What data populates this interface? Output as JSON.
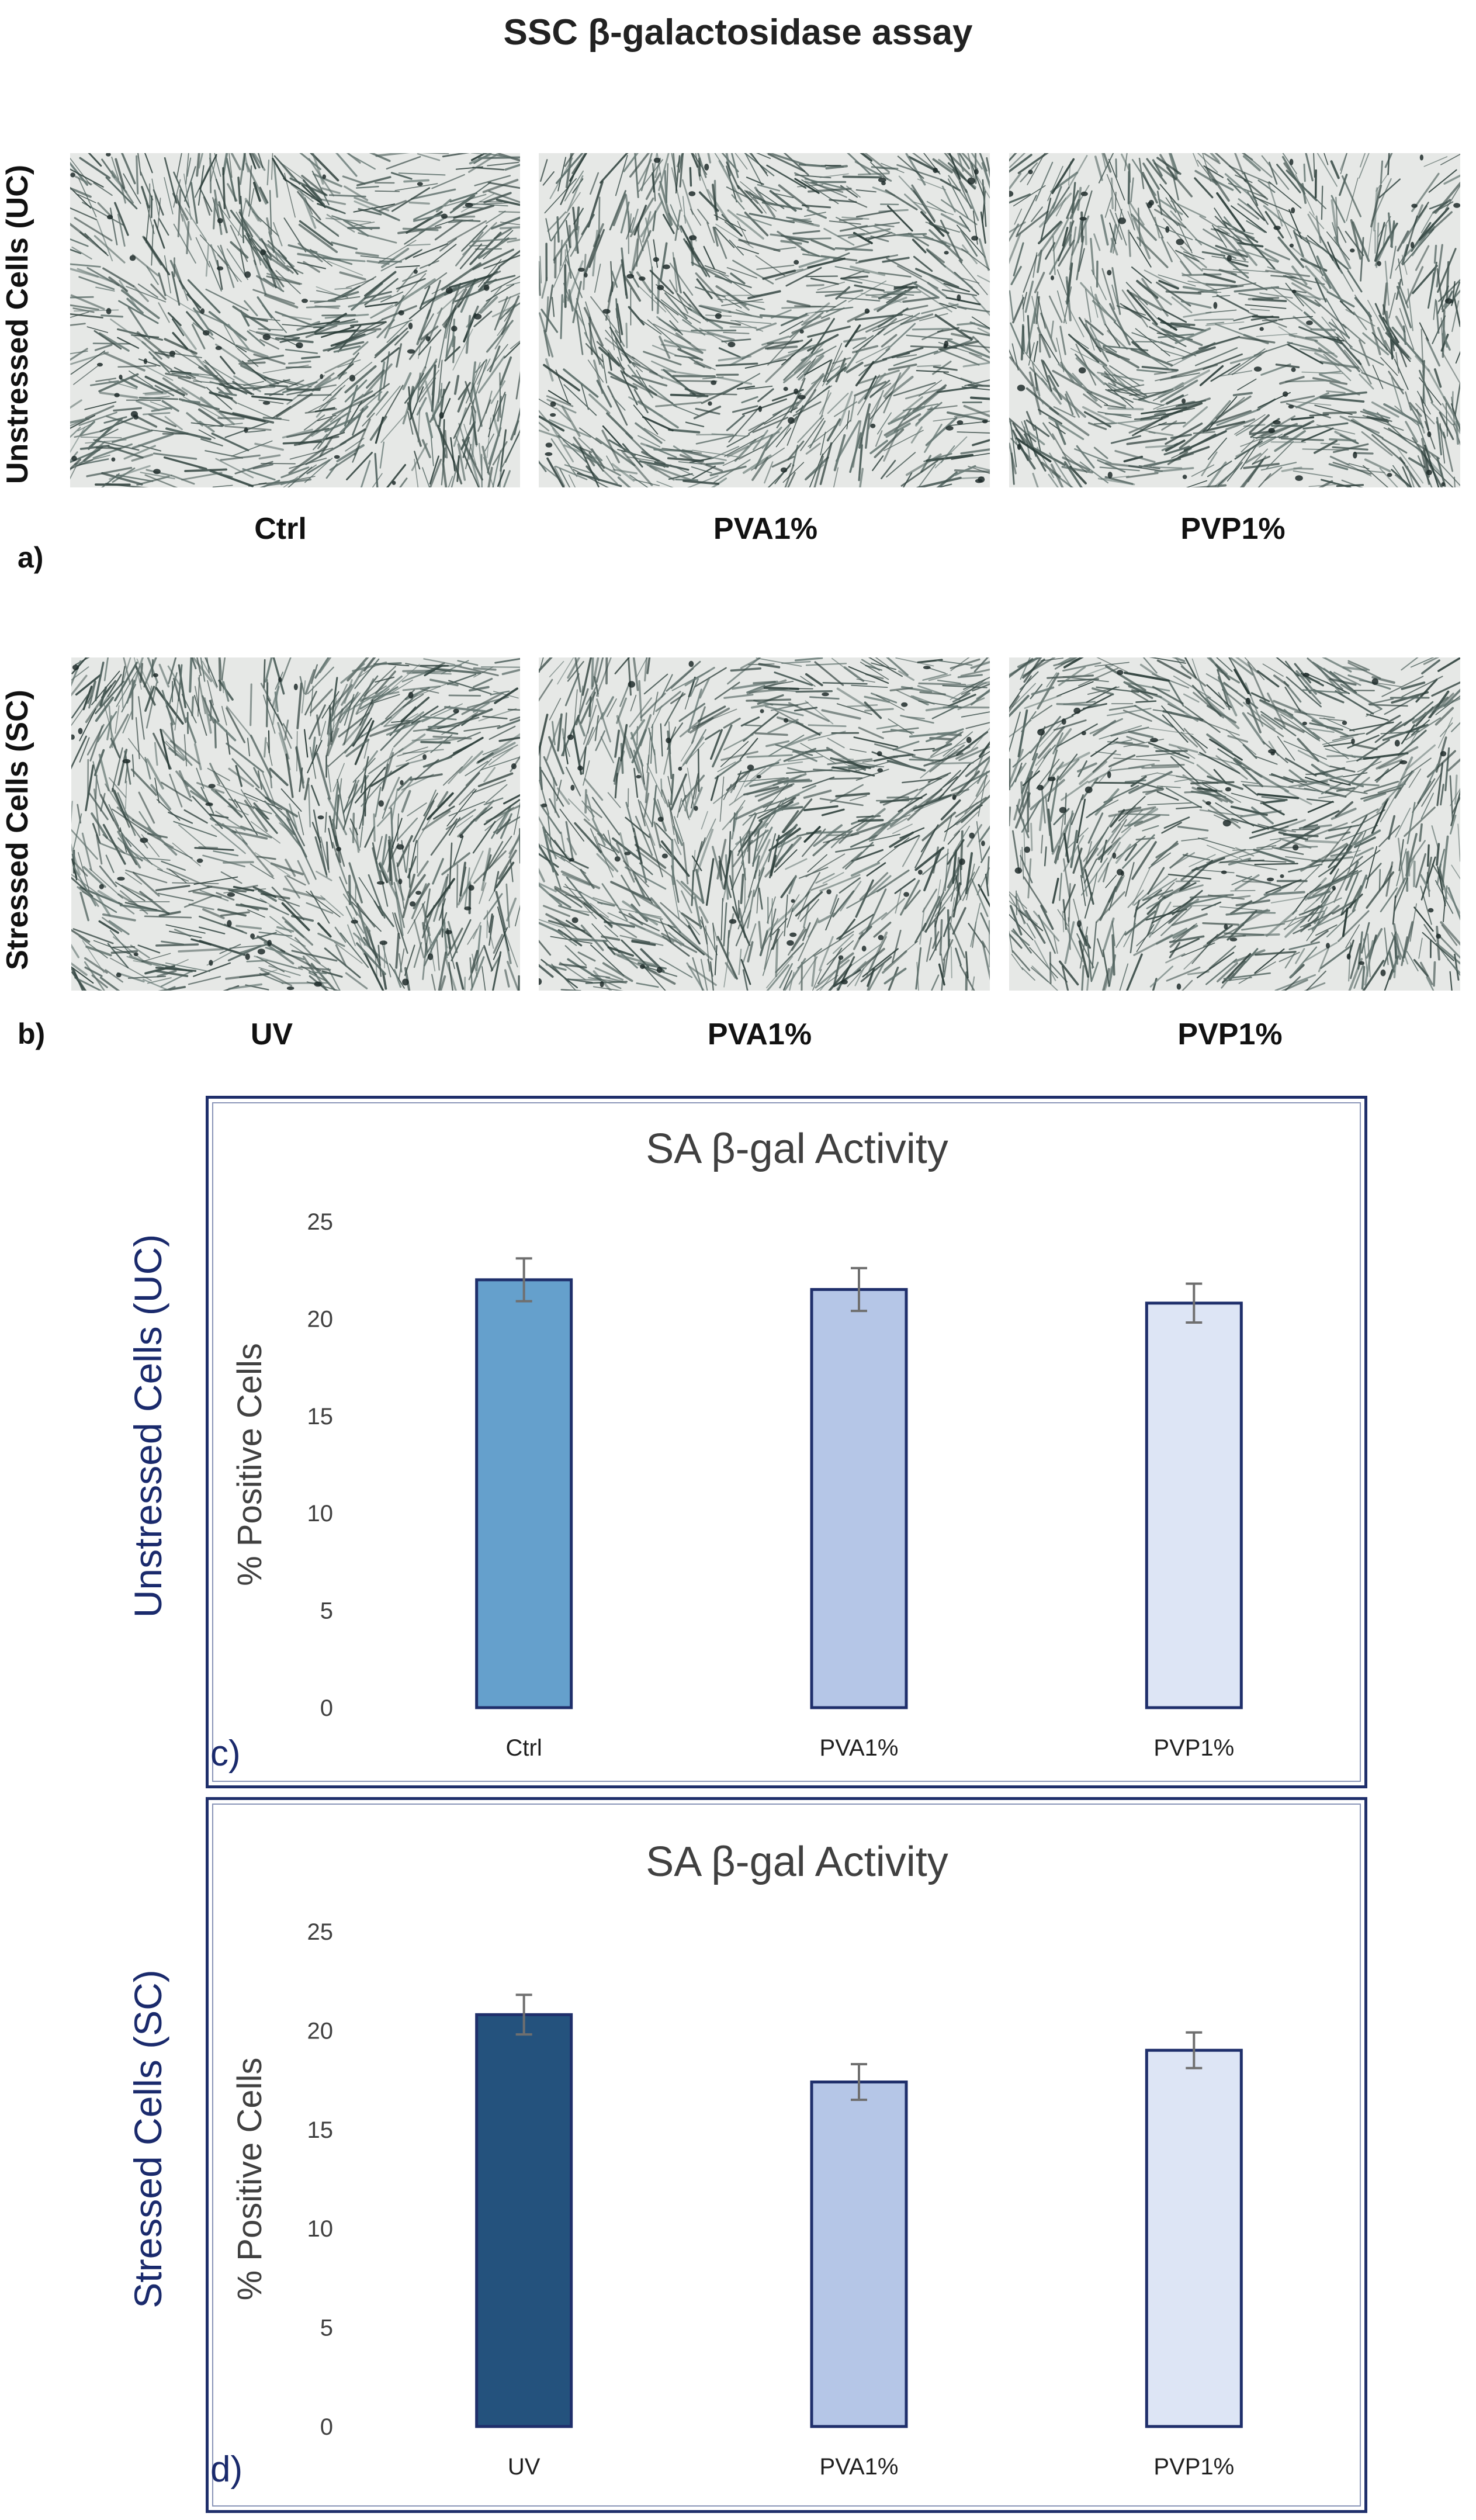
{
  "figure_title": "SSC β-galactosidase assay",
  "micrographs": {
    "row_a": {
      "side_label": "Unstressed Cells (UC)",
      "tag": "a)",
      "captions": [
        "Ctrl",
        "PVA1%",
        "PVP1%"
      ]
    },
    "row_b": {
      "side_label": "Stressed Cells (SC)",
      "tag": "b)",
      "captions": [
        "UV",
        "PVA1%",
        "PVP1%"
      ]
    }
  },
  "charts": {
    "c": {
      "side_label": "Unstressed Cells (UC)",
      "panel_letter": "c)"
    },
    "d": {
      "side_label": "Stressed Cells (SC)",
      "panel_letter": "d)"
    }
  },
  "colors": {
    "axis_label": "#404040",
    "side_label": "#1a2a6c",
    "bar_border": "#1f2f6b",
    "error_bar": "#6f6f6f"
  },
  "chart_data": [
    {
      "type": "bar",
      "title": "SA β-gal Activity",
      "ylabel": "% Positive Cells",
      "xlabel": "",
      "ylim": [
        0,
        25
      ],
      "yticks": [
        0,
        5,
        10,
        15,
        20,
        25
      ],
      "categories": [
        "Ctrl",
        "PVA1%",
        "PVP1%"
      ],
      "values": [
        22.0,
        21.5,
        20.8
      ],
      "errors": [
        1.1,
        1.1,
        1.0
      ],
      "bar_colors": [
        "#65a0cc",
        "#b5c6e7",
        "#dde5f5"
      ]
    },
    {
      "type": "bar",
      "title": "SA β-gal Activity",
      "ylabel": "% Positive Cells",
      "xlabel": "",
      "ylim": [
        0,
        25
      ],
      "yticks": [
        0,
        5,
        10,
        15,
        20,
        25
      ],
      "categories": [
        "UV",
        "PVA1%",
        "PVP1%"
      ],
      "values": [
        20.8,
        17.4,
        19.0
      ],
      "errors": [
        1.0,
        0.9,
        0.9
      ],
      "bar_colors": [
        "#24527d",
        "#b5c6e7",
        "#dde5f5"
      ]
    }
  ]
}
